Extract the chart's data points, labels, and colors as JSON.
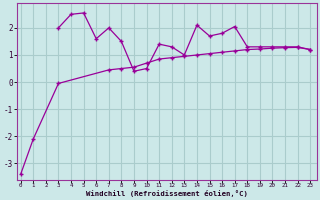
{
  "xlabel": "Windchill (Refroidissement éolien,°C)",
  "bg_color": "#cce8e8",
  "grid_color": "#aacccc",
  "line_color": "#990099",
  "x": [
    0,
    1,
    2,
    3,
    4,
    5,
    6,
    7,
    8,
    9,
    10,
    11,
    12,
    13,
    14,
    15,
    16,
    17,
    18,
    19,
    20,
    21,
    22,
    23
  ],
  "line1_x": [
    3,
    4,
    5,
    6,
    7,
    8,
    9,
    10,
    11,
    12,
    13,
    14,
    15,
    16,
    17,
    18,
    19,
    20,
    21,
    22,
    23
  ],
  "line1_y": [
    2.0,
    2.5,
    2.55,
    1.6,
    2.0,
    1.5,
    0.4,
    0.5,
    1.4,
    1.3,
    1.0,
    2.1,
    1.7,
    1.8,
    2.05,
    1.3,
    1.3,
    1.3,
    1.3,
    1.3,
    1.2
  ],
  "line2_x": [
    0,
    1,
    3,
    7,
    8,
    9,
    10,
    11,
    12,
    13,
    14,
    15,
    16,
    17,
    18,
    19,
    20,
    21,
    22,
    23
  ],
  "line2_y": [
    -3.4,
    -2.1,
    -0.05,
    0.45,
    0.5,
    0.55,
    0.7,
    0.85,
    0.9,
    0.95,
    1.0,
    1.05,
    1.1,
    1.15,
    1.2,
    1.22,
    1.25,
    1.27,
    1.28,
    1.2
  ],
  "ylim": [
    -3.6,
    2.9
  ],
  "xlim": [
    -0.3,
    23.5
  ],
  "yticks": [
    -3,
    -2,
    -1,
    0,
    1,
    2
  ],
  "xticks": [
    0,
    1,
    2,
    3,
    4,
    5,
    6,
    7,
    8,
    9,
    10,
    11,
    12,
    13,
    14,
    15,
    16,
    17,
    18,
    19,
    20,
    21,
    22,
    23
  ]
}
